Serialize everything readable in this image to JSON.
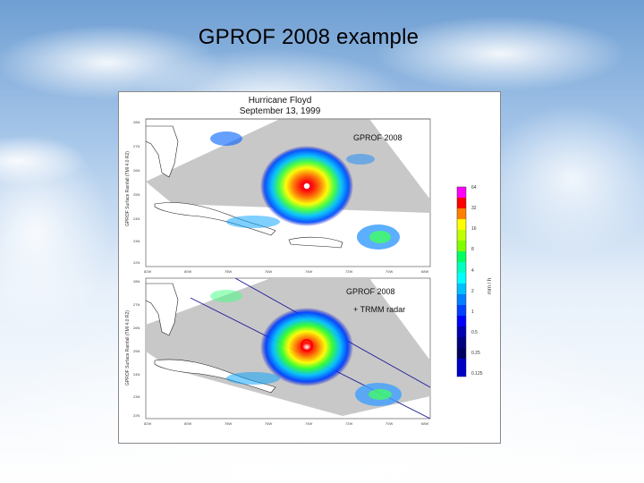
{
  "slide": {
    "title": "GPROF 2008 example"
  },
  "figure": {
    "title_line1": "Hurricane Floyd",
    "title_line2": "September 13, 1999",
    "top_panel": {
      "label": "GPROF 2008",
      "ylabel": "GPROF Surface Rainfall (TMI 4.0 R2)",
      "y_ticks": [
        "28N",
        "27N",
        "26N",
        "25N",
        "24N",
        "23N",
        "22N"
      ],
      "x_ticks": [
        "82W",
        "80W",
        "78W",
        "76W",
        "74W",
        "72W",
        "70W",
        "68W"
      ]
    },
    "bottom_panel": {
      "label_line1": "GPROF 2008",
      "label_line2": "+ TRMM radar",
      "ylabel": "GPROF Surface Rainfall (TMI 4.0 R2)",
      "y_ticks": [
        "28N",
        "27N",
        "26N",
        "25N",
        "24N",
        "23N",
        "22N"
      ],
      "x_ticks": [
        "82W",
        "80W",
        "78W",
        "76W",
        "74W",
        "72W",
        "70W",
        "68W"
      ]
    },
    "colorbar": {
      "unit": "mm / h",
      "ticks": [
        "64",
        "32",
        "16",
        "8",
        "4",
        "2",
        "1",
        "0.5",
        "0.25",
        "0.125"
      ],
      "colors": [
        "#ff00ff",
        "#ff0000",
        "#ff8000",
        "#ffff00",
        "#80ff00",
        "#00ff80",
        "#00ffff",
        "#0080ff",
        "#0000ff",
        "#000080"
      ]
    }
  }
}
